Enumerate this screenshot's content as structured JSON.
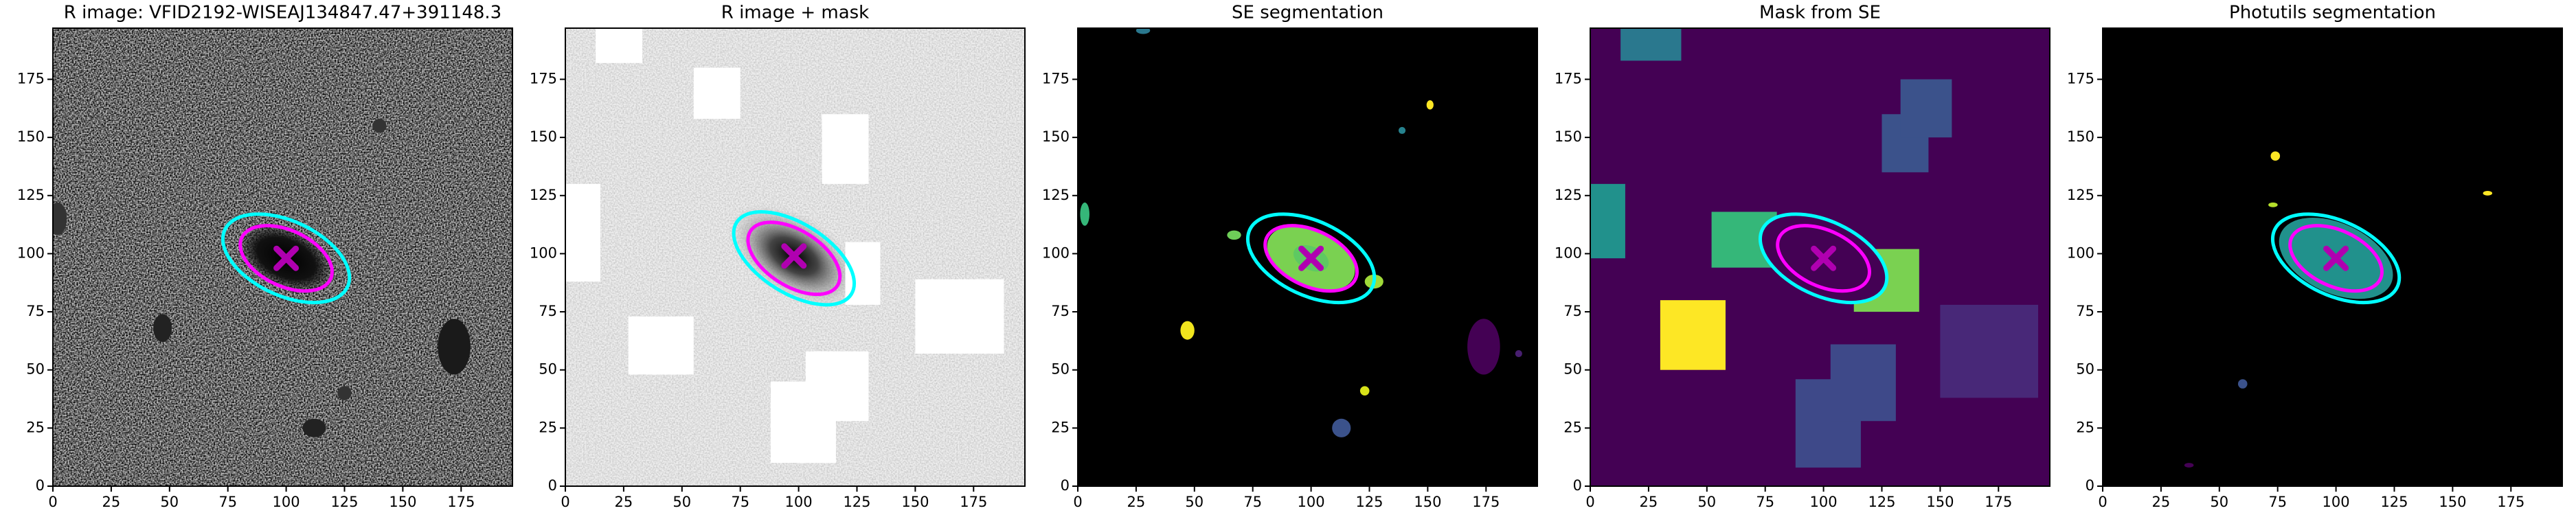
{
  "chart_data": [
    {
      "type": "image",
      "title": "R image: VFID2192-WISEAJ134847.47+391148.3",
      "xlim": [
        0,
        197
      ],
      "ylim": [
        0,
        197
      ],
      "xticks": [
        0,
        25,
        50,
        75,
        100,
        125,
        150,
        175
      ],
      "yticks": [
        0,
        25,
        50,
        75,
        100,
        125,
        150,
        175
      ],
      "ellipses": [
        {
          "x": 100,
          "y": 98,
          "a": 29,
          "b": 16,
          "angle": -25,
          "color": "#00ffff"
        },
        {
          "x": 100,
          "y": 98,
          "a": 21,
          "b": 12,
          "angle": -25,
          "color": "#ff00ff"
        }
      ],
      "marker": {
        "x": 100,
        "y": 98,
        "color": "#b000b0"
      }
    },
    {
      "type": "image",
      "title": "R image + mask",
      "xlim": [
        0,
        197
      ],
      "ylim": [
        0,
        197
      ],
      "xticks": [
        0,
        25,
        50,
        75,
        100,
        125,
        150,
        175
      ],
      "yticks": [
        0,
        25,
        50,
        75,
        100,
        125,
        150,
        175
      ],
      "ellipses": [
        {
          "x": 98,
          "y": 98,
          "a": 29,
          "b": 15,
          "angle": -32,
          "color": "#00ffff"
        },
        {
          "x": 98,
          "y": 98,
          "a": 22,
          "b": 12,
          "angle": -32,
          "color": "#ff00ff"
        }
      ],
      "marker": {
        "x": 98,
        "y": 99,
        "color": "#b000b0"
      }
    },
    {
      "type": "image",
      "title": "SE segmentation",
      "xlim": [
        0,
        197
      ],
      "ylim": [
        0,
        197
      ],
      "xticks": [
        0,
        25,
        50,
        75,
        100,
        125,
        150,
        175
      ],
      "yticks": [
        0,
        25,
        50,
        75,
        100,
        125,
        150,
        175
      ],
      "ellipses": [
        {
          "x": 100,
          "y": 98,
          "a": 29,
          "b": 16,
          "angle": -25,
          "color": "#00ffff"
        },
        {
          "x": 100,
          "y": 98,
          "a": 21,
          "b": 12,
          "angle": -25,
          "color": "#ff00ff"
        }
      ],
      "marker": {
        "x": 100,
        "y": 98,
        "color": "#b000b0"
      }
    },
    {
      "type": "image",
      "title": "Mask from SE",
      "xlim": [
        0,
        197
      ],
      "ylim": [
        0,
        197
      ],
      "xticks": [
        0,
        25,
        50,
        75,
        100,
        125,
        150,
        175
      ],
      "yticks": [
        0,
        25,
        50,
        75,
        100,
        125,
        150,
        175
      ],
      "ellipses": [
        {
          "x": 100,
          "y": 98,
          "a": 29,
          "b": 16,
          "angle": -25,
          "color": "#00ffff"
        },
        {
          "x": 100,
          "y": 98,
          "a": 21,
          "b": 12,
          "angle": -25,
          "color": "#ff00ff"
        }
      ],
      "marker": {
        "x": 100,
        "y": 98,
        "color": "#b000b0"
      }
    },
    {
      "type": "image",
      "title": "Photutils segmentation",
      "xlim": [
        0,
        197
      ],
      "ylim": [
        0,
        197
      ],
      "xticks": [
        0,
        25,
        50,
        75,
        100,
        125,
        150,
        175
      ],
      "yticks": [
        0,
        25,
        50,
        75,
        100,
        125,
        150,
        175
      ],
      "ellipses": [
        {
          "x": 100,
          "y": 98,
          "a": 29,
          "b": 16,
          "angle": -25,
          "color": "#00ffff"
        },
        {
          "x": 100,
          "y": 98,
          "a": 21,
          "b": 12,
          "angle": -25,
          "color": "#ff00ff"
        }
      ],
      "marker": {
        "x": 100,
        "y": 98,
        "color": "#b000b0"
      }
    }
  ]
}
